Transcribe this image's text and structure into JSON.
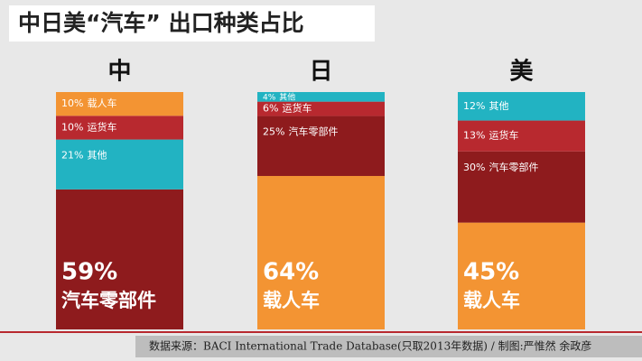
{
  "chart_data": {
    "type": "stacked-bar",
    "title": "中日美“汽车” 出口种类占比",
    "categories": [
      "中",
      "日",
      "美"
    ],
    "columns": [
      {
        "segments": [
          {
            "name": "汽车零部件",
            "value": 59,
            "value_label": "59%",
            "color": "#8e1b1d"
          },
          {
            "name": "其他",
            "value": 21,
            "value_label": "21%",
            "color": "#22b3c2"
          },
          {
            "name": "运货车",
            "value": 10,
            "value_label": "10%",
            "color": "#b8292f"
          },
          {
            "name": "载人车",
            "value": 10,
            "value_label": "10%",
            "color": "#f39433"
          }
        ]
      },
      {
        "segments": [
          {
            "name": "载人车",
            "value": 64,
            "value_label": "64%",
            "color": "#f39433"
          },
          {
            "name": "汽车零部件",
            "value": 25,
            "value_label": "25%",
            "color": "#8e1b1d"
          },
          {
            "name": "运货车",
            "value": 6,
            "value_label": "6%",
            "color": "#b8292f"
          },
          {
            "name": "其他",
            "value": 4,
            "value_label": "4%",
            "color": "#22b3c2"
          }
        ]
      },
      {
        "segments": [
          {
            "name": "载人车",
            "value": 45,
            "value_label": "45%",
            "color": "#f39433"
          },
          {
            "name": "汽车零部件",
            "value": 30,
            "value_label": "30%",
            "color": "#8e1b1d"
          },
          {
            "name": "运货车",
            "value": 13,
            "value_label": "13%",
            "color": "#b8292f"
          },
          {
            "name": "其他",
            "value": 12,
            "value_label": "12%",
            "color": "#22b3c2"
          }
        ]
      }
    ],
    "source": "数据来源：BACI International Trade Database(只取2013年数据) / 制图:严惟然 余政彦"
  }
}
